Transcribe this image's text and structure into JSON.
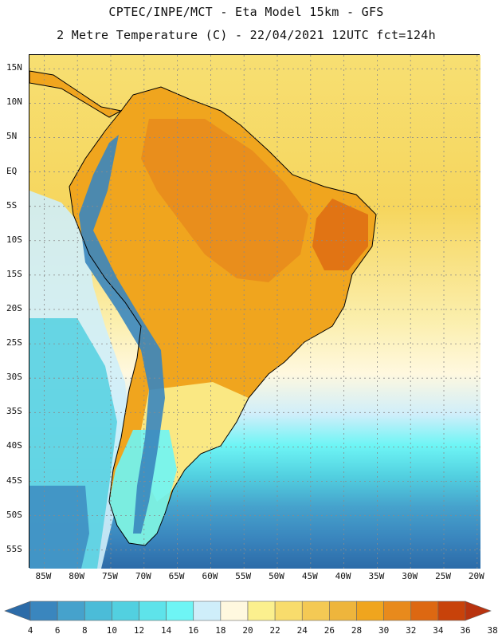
{
  "header": {
    "line1": "CPTEC/INPE/MCT -  Eta Model 15km - GFS",
    "line2": "2 Metre Temperature (C) - 22/04/2021 12UTC fct=124h"
  },
  "map": {
    "lat_labels": [
      "15N",
      "10N",
      "5N",
      "EQ",
      "5S",
      "10S",
      "15S",
      "20S",
      "25S",
      "30S",
      "35S",
      "40S",
      "45S",
      "50S",
      "55S"
    ],
    "lon_labels": [
      "85W",
      "80W",
      "75W",
      "70W",
      "65W",
      "60W",
      "55W",
      "50W",
      "45W",
      "40W",
      "35W",
      "30W",
      "25W",
      "20W"
    ],
    "lat_values": [
      15,
      10,
      5,
      0,
      -5,
      -10,
      -15,
      -20,
      -25,
      -30,
      -35,
      -40,
      -45,
      -50,
      -55
    ],
    "lon_values": [
      -85,
      -80,
      -75,
      -70,
      -65,
      -60,
      -55,
      -50,
      -45,
      -40,
      -35,
      -30,
      -25,
      -20
    ]
  },
  "legend": {
    "colors": [
      "#2c6ba8",
      "#3a86be",
      "#46a2cc",
      "#4bbcd8",
      "#52d0e0",
      "#5ee3ea",
      "#6ef5f5",
      "#cfeefa",
      "#fff8df",
      "#fbf08e",
      "#f8dc6c",
      "#f4c954",
      "#eeb53c",
      "#f0a51e",
      "#e88a1c",
      "#dd6812",
      "#c8420a",
      "#b8330f"
    ],
    "tick_labels": [
      "4",
      "6",
      "8",
      "10",
      "12",
      "14",
      "16",
      "18",
      "20",
      "22",
      "24",
      "26",
      "28",
      "30",
      "32",
      "34",
      "36",
      "38"
    ],
    "tick_values": [
      4,
      6,
      8,
      10,
      12,
      14,
      16,
      18,
      20,
      22,
      24,
      26,
      28,
      30,
      32,
      34,
      36,
      38
    ],
    "units": "C"
  }
}
